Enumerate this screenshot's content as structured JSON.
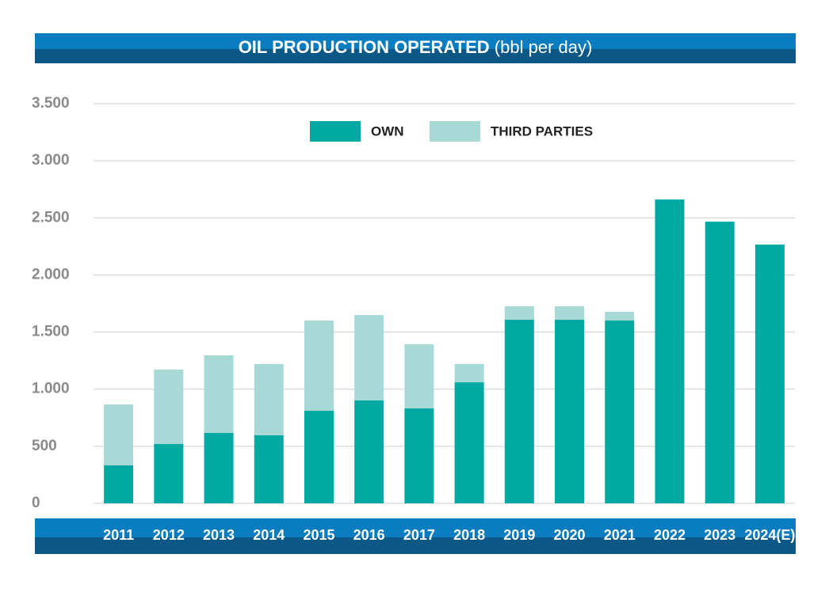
{
  "chart_data": {
    "type": "stacked_bar",
    "title": "OIL PRODUCTION OPERATED",
    "subtitle": "(bbl per day)",
    "categories": [
      "2011",
      "2012",
      "2013",
      "2014",
      "2015",
      "2016",
      "2017",
      "2018",
      "2019",
      "2020",
      "2021",
      "2022",
      "2023",
      "2024(E)"
    ],
    "series": [
      {
        "name": "OWN",
        "color": "#00aaa2",
        "values": [
          333,
          520,
          617,
          596,
          811,
          901,
          832,
          1060,
          1608,
          1608,
          1601,
          2661,
          2467,
          2266
        ]
      },
      {
        "name": "THIRD PARTIES",
        "color": "#a7d9d6",
        "values": [
          533,
          651,
          679,
          624,
          790,
          748,
          561,
          160,
          118,
          118,
          76,
          0,
          0,
          0
        ]
      }
    ],
    "ylim": [
      0,
      3500
    ],
    "yticks": [
      0,
      500,
      {
        "value": 1000,
        "label": "1.000"
      },
      {
        "value": 1500,
        "label": "1.500"
      },
      {
        "value": 2000,
        "label": "2.000"
      },
      {
        "value": 2500,
        "label": "2.500"
      },
      {
        "value": 3000,
        "label": "3.000"
      },
      {
        "value": 3500,
        "label": "3.500"
      }
    ],
    "grid": true,
    "legend": "top"
  }
}
